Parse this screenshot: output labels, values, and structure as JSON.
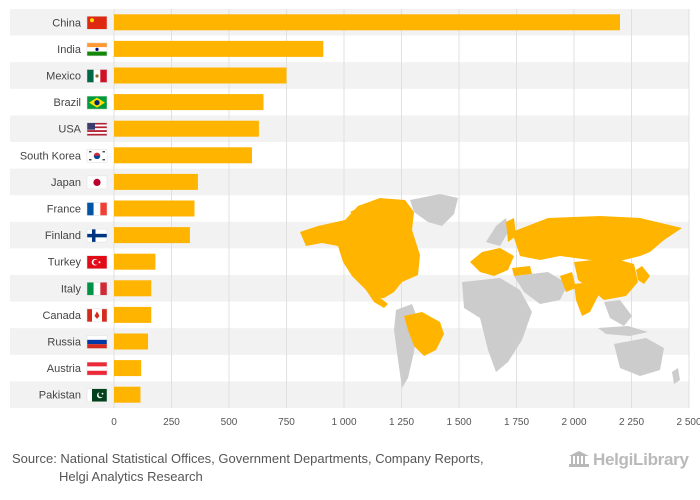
{
  "chart_data": {
    "type": "bar",
    "orientation": "horizontal",
    "categories": [
      "China",
      "India",
      "Mexico",
      "Brazil",
      "USA",
      "South Korea",
      "Japan",
      "France",
      "Finland",
      "Turkey",
      "Italy",
      "Canada",
      "Russia",
      "Austria",
      "Pakistan"
    ],
    "values": [
      2200,
      910,
      750,
      650,
      630,
      600,
      365,
      350,
      330,
      180,
      162,
      162,
      148,
      118,
      115
    ],
    "xlim": [
      0,
      2500
    ],
    "xticks": [
      0,
      250,
      500,
      750,
      1000,
      1250,
      1500,
      1750,
      2000,
      2250,
      2500
    ],
    "xtick_labels": [
      "0",
      "250",
      "500",
      "750",
      "1 000",
      "1 250",
      "1 500",
      "1 750",
      "2 000",
      "2 250",
      "2 500"
    ],
    "bar_color": "#ffb400",
    "grid": true
  },
  "footer": {
    "source_line1": "Source: National Statistical Offices, Government Departments, Company Reports,",
    "source_line2": "Helgi Analytics Research",
    "logo_text": "HelgiLibrary"
  },
  "colors": {
    "stripe": "#f2f2f2",
    "grid": "#e0e0e0",
    "map_highlight": "#ffb400",
    "map_other": "#cccccc"
  },
  "flag_icons": [
    "china-flag-icon",
    "india-flag-icon",
    "mexico-flag-icon",
    "brazil-flag-icon",
    "usa-flag-icon",
    "south-korea-flag-icon",
    "japan-flag-icon",
    "france-flag-icon",
    "finland-flag-icon",
    "turkey-flag-icon",
    "italy-flag-icon",
    "canada-flag-icon",
    "russia-flag-icon",
    "austria-flag-icon",
    "pakistan-flag-icon"
  ]
}
